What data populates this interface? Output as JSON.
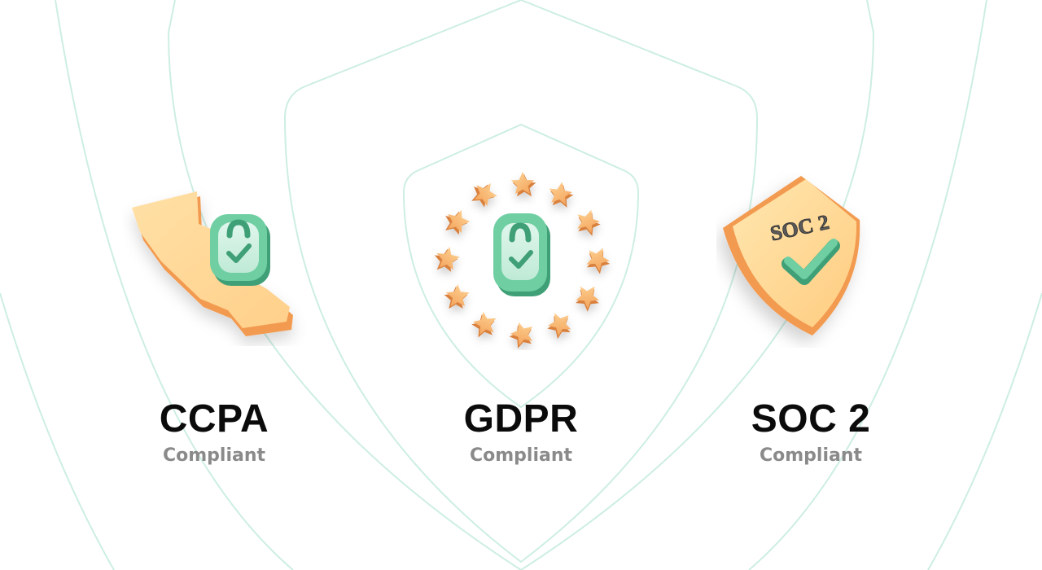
{
  "badges": [
    {
      "title": "CCPA",
      "subtitle": "Compliant",
      "icon": "california-lock-icon"
    },
    {
      "title": "GDPR",
      "subtitle": "Compliant",
      "icon": "eu-stars-lock-icon"
    },
    {
      "title": "SOC 2",
      "subtitle": "Compliant",
      "icon": "soc2-shield-icon"
    }
  ],
  "soc2_shield_text": "SOC 2",
  "colors": {
    "outline": "#cdeee3",
    "orange": "#f7a55a",
    "orange_light": "#ffd799",
    "green": "#6fcfa3",
    "green_dark": "#3f9f76",
    "title": "#0b0b0b",
    "subtitle": "#8a8a8a"
  }
}
